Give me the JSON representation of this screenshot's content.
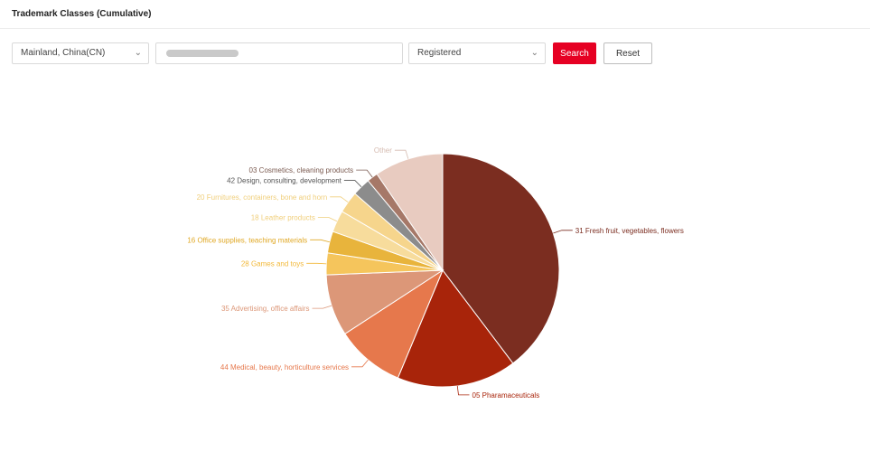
{
  "page": {
    "title": "Trademark Classes (Cumulative)"
  },
  "filters": {
    "country": {
      "value": "Mainland, China(CN)",
      "icon": "chevron-down-icon"
    },
    "keyword": {
      "value": "",
      "placeholder": ""
    },
    "status": {
      "value": "Registered",
      "icon": "chevron-down-icon"
    },
    "search_label": "Search",
    "reset_label": "Reset"
  },
  "colors": {
    "accent": "#e60023"
  },
  "chart_data": {
    "type": "pie",
    "title": "",
    "series": [
      {
        "label": "31 Fresh fruit, vegetables, flowers",
        "value": 39.5,
        "color": "#7b2d20"
      },
      {
        "label": "05 Pharamaceuticals",
        "value": 16.5,
        "color": "#a8240a"
      },
      {
        "label": "44 Medical, beauty, horticulture services",
        "value": 9.5,
        "color": "#e6784c"
      },
      {
        "label": "35 Advertising, office affairs",
        "value": 8.5,
        "color": "#dc9778"
      },
      {
        "label": "28 Games and toys",
        "value": 3.0,
        "color": "#f5c55c"
      },
      {
        "label": "16 Office supplies, teaching materials",
        "value": 3.0,
        "color": "#e8b43c"
      },
      {
        "label": "18 Leather products",
        "value": 3.0,
        "color": "#f7dc9c"
      },
      {
        "label": "20 Furnitures, containers, bone and horn",
        "value": 3.0,
        "color": "#f6d58c"
      },
      {
        "label": "42 Design, consulting, development",
        "value": 2.5,
        "color": "#8c8c8c"
      },
      {
        "label": "03 Cosmetics, cleaning products",
        "value": 1.5,
        "color": "#a67868"
      },
      {
        "label": "Other",
        "value": 9.5,
        "color": "#e8cbc0"
      }
    ],
    "label_colors": [
      "#7b2d20",
      "#a8240a",
      "#e6784c",
      "#dc9778",
      "#f2b93a",
      "#e0a825",
      "#f0cf7c",
      "#f0cf7c",
      "#555555",
      "#7a5a50",
      "#d6bcb2"
    ],
    "legend": "none"
  }
}
